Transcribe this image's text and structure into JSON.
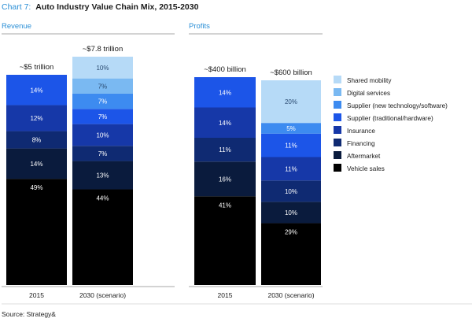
{
  "chart_data": {
    "type": "bar",
    "stacked": true,
    "title_prefix": "Chart 7:",
    "title": "Auto Industry Value Chain Mix, 2015-2030",
    "source": "Source: Strategy&",
    "value_unit": "%",
    "series": [
      {
        "name": "Vehicle sales",
        "color": "#000000"
      },
      {
        "name": "Aftermarket",
        "color": "#0a1b3d"
      },
      {
        "name": "Financing",
        "color": "#0f2a72"
      },
      {
        "name": "Insurance",
        "color": "#1638a8"
      },
      {
        "name": "Supplier (traditional/hardware)",
        "color": "#1c55e8"
      },
      {
        "name": "Supplier (new technology/software)",
        "color": "#3d8bf0"
      },
      {
        "name": "Digital services",
        "color": "#7ab9f2"
      },
      {
        "name": "Shared mobility",
        "color": "#b6daf7"
      }
    ],
    "panels": [
      {
        "heading": "Revenue",
        "bars": [
          {
            "category": "2015",
            "total_label": "~$5 trillion",
            "segments": [
              {
                "series": "Vehicle sales",
                "value": 49
              },
              {
                "series": "Aftermarket",
                "value": 14
              },
              {
                "series": "Financing",
                "value": 8
              },
              {
                "series": "Insurance",
                "value": 12
              },
              {
                "series": "Supplier (traditional/hardware)",
                "value": 14
              }
            ]
          },
          {
            "category": "2030 (scenario)",
            "total_label": "~$7.8 trillion",
            "segments": [
              {
                "series": "Vehicle sales",
                "value": 44
              },
              {
                "series": "Aftermarket",
                "value": 13
              },
              {
                "series": "Financing",
                "value": 7
              },
              {
                "series": "Insurance",
                "value": 10
              },
              {
                "series": "Supplier (traditional/hardware)",
                "value": 7
              },
              {
                "series": "Supplier (new technology/software)",
                "value": 7
              },
              {
                "series": "Digital services",
                "value": 7
              },
              {
                "series": "Shared mobility",
                "value": 10
              }
            ]
          }
        ]
      },
      {
        "heading": "Profits",
        "bars": [
          {
            "category": "2015",
            "total_label": "~$400 billion",
            "segments": [
              {
                "series": "Vehicle sales",
                "value": 41
              },
              {
                "series": "Aftermarket",
                "value": 16
              },
              {
                "series": "Financing",
                "value": 11
              },
              {
                "series": "Insurance",
                "value": 14
              },
              {
                "series": "Supplier (traditional/hardware)",
                "value": 14
              }
            ]
          },
          {
            "category": "2030 (scenario)",
            "total_label": "~$600 billion",
            "segments": [
              {
                "series": "Vehicle sales",
                "value": 29
              },
              {
                "series": "Aftermarket",
                "value": 10
              },
              {
                "series": "Financing",
                "value": 10
              },
              {
                "series": "Insurance",
                "value": 11
              },
              {
                "series": "Supplier (traditional/hardware)",
                "value": 11
              },
              {
                "series": "Supplier (new technology/software)",
                "value": 5
              },
              {
                "series": "Digital services",
                "value": 0
              },
              {
                "series": "Shared mobility",
                "value": 20
              }
            ]
          }
        ]
      }
    ]
  }
}
